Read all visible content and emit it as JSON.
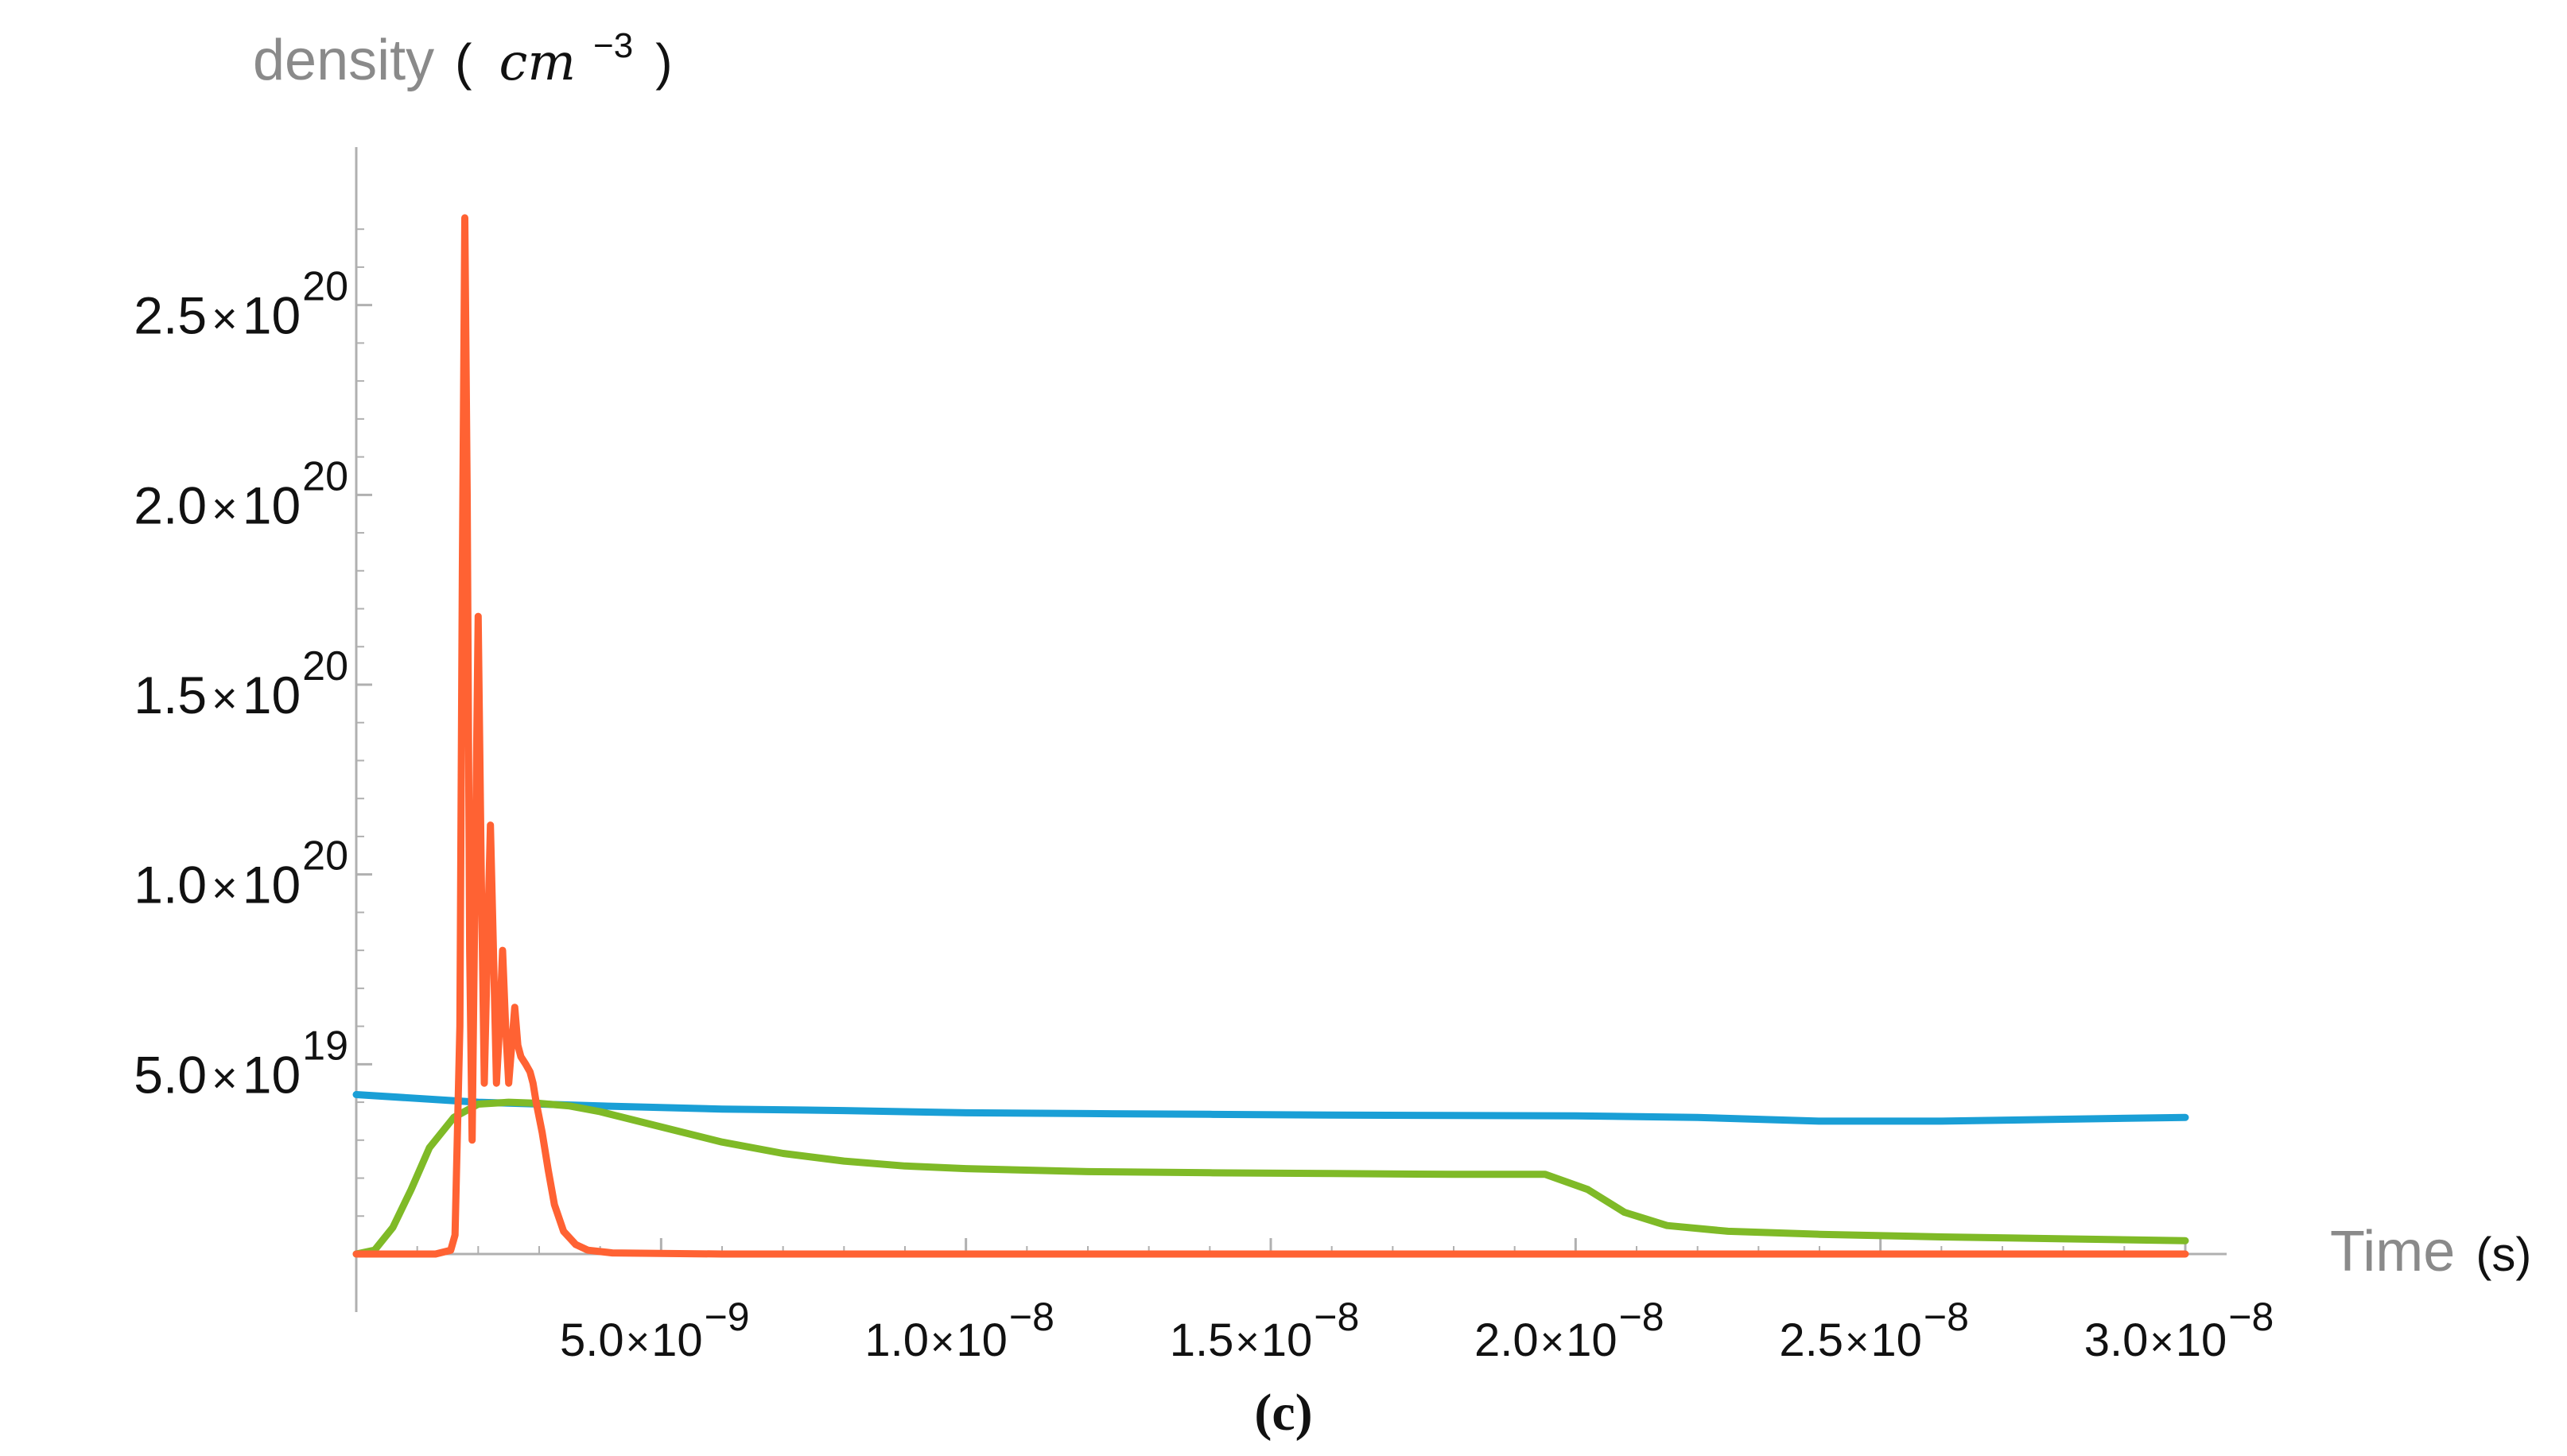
{
  "chart_data": {
    "type": "line",
    "caption": "(c)",
    "ylabel": {
      "word": "density",
      "open": "(",
      "unit_base": "cm",
      "unit_exp": "−3",
      "close": ")"
    },
    "xlabel": {
      "word": "Time",
      "unit": "(s)"
    },
    "xlim": [
      0,
      3e-08
    ],
    "ylim": [
      0,
      2.78e+20
    ],
    "x_ticks": [
      {
        "value": 5e-09,
        "mantissa": "5.0",
        "times": "×",
        "base": "10",
        "exp": "−9"
      },
      {
        "value": 1e-08,
        "mantissa": "1.0",
        "times": "×",
        "base": "10",
        "exp": "−8"
      },
      {
        "value": 1.5e-08,
        "mantissa": "1.5",
        "times": "×",
        "base": "10",
        "exp": "−8"
      },
      {
        "value": 2e-08,
        "mantissa": "2.0",
        "times": "×",
        "base": "10",
        "exp": "−8"
      },
      {
        "value": 2.5e-08,
        "mantissa": "2.5",
        "times": "×",
        "base": "10",
        "exp": "−8"
      },
      {
        "value": 3e-08,
        "mantissa": "3.0",
        "times": "×",
        "base": "10",
        "exp": "−8"
      }
    ],
    "y_ticks": [
      {
        "value": 5e+19,
        "mantissa": "5.0",
        "times": "×",
        "base": "10",
        "exp": "19"
      },
      {
        "value": 1e+20,
        "mantissa": "1.0",
        "times": "×",
        "base": "10",
        "exp": "20"
      },
      {
        "value": 1.5e+20,
        "mantissa": "1.5",
        "times": "×",
        "base": "10",
        "exp": "20"
      },
      {
        "value": 2e+20,
        "mantissa": "2.0",
        "times": "×",
        "base": "10",
        "exp": "20"
      },
      {
        "value": 2.5e+20,
        "mantissa": "2.5",
        "times": "×",
        "base": "10",
        "exp": "20"
      }
    ],
    "grid": false,
    "legend": "none",
    "series": [
      {
        "color": "#1a9fd6",
        "x": [
          0,
          2e-09,
          4e-09,
          6e-09,
          8e-09,
          1e-08,
          1.2e-08,
          1.4e-08,
          1.6e-08,
          1.8e-08,
          2e-08,
          2.2e-08,
          2.4e-08,
          2.6e-08,
          2.8e-08,
          3e-08
        ],
        "y": [
          4.2e+19,
          4e+19,
          3.9e+19,
          3.82e+19,
          3.78e+19,
          3.72e+19,
          3.7e+19,
          3.68e+19,
          3.66e+19,
          3.65e+19,
          3.64e+19,
          3.6e+19,
          3.5e+19,
          3.5e+19,
          3.55e+19,
          3.6e+19
        ]
      },
      {
        "color": "#7fba27",
        "x": [
          0,
          3e-10,
          6e-10,
          9e-10,
          1.2e-09,
          1.6e-09,
          2e-09,
          2.5e-09,
          3e-09,
          3.5e-09,
          4e-09,
          5e-09,
          6e-09,
          7e-09,
          8e-09,
          9e-09,
          1e-08,
          1.2e-08,
          1.4e-08,
          1.6e-08,
          1.8e-08,
          1.95e-08,
          2.02e-08,
          2.08e-08,
          2.15e-08,
          2.25e-08,
          2.4e-08,
          2.6e-08,
          2.8e-08,
          3e-08
        ],
        "y": [
          0,
          1e+18,
          7e+18,
          1.7e+19,
          2.8e+19,
          3.6e+19,
          3.95e+19,
          4e+19,
          3.97e+19,
          3.9e+19,
          3.75e+19,
          3.35e+19,
          2.95e+19,
          2.65e+19,
          2.45e+19,
          2.32e+19,
          2.25e+19,
          2.17e+19,
          2.14e+19,
          2.12e+19,
          2.1e+19,
          2.1e+19,
          1.7e+19,
          1.1e+19,
          7.5e+18,
          6e+18,
          5.2e+18,
          4.5e+18,
          4e+18,
          3.5e+18
        ]
      },
      {
        "color": "#ff6233",
        "x": [
          0,
          1.3e-09,
          1.55e-09,
          1.62e-09,
          1.7e-09,
          1.74e-09,
          1.78e-09,
          1.82e-09,
          1.86e-09,
          1.9e-09,
          1.95e-09,
          2e-09,
          2.05e-09,
          2.1e-09,
          2.15e-09,
          2.2e-09,
          2.25e-09,
          2.3e-09,
          2.35e-09,
          2.4e-09,
          2.45e-09,
          2.5e-09,
          2.55e-09,
          2.6e-09,
          2.65e-09,
          2.7e-09,
          2.78e-09,
          2.85e-09,
          2.9e-09,
          2.95e-09,
          3.05e-09,
          3.15e-09,
          3.25e-09,
          3.4e-09,
          3.6e-09,
          3.8e-09,
          4.2e-09,
          6e-09,
          1e-08,
          2e-08,
          3e-08
        ],
        "y": [
          0,
          0,
          1e+18,
          5e+18,
          6e+19,
          1.8e+20,
          2.73e+20,
          2e+20,
          8e+19,
          3e+19,
          1e+20,
          1.68e+20,
          1e+20,
          4.5e+19,
          8e+19,
          1.13e+20,
          8e+19,
          4.5e+19,
          6e+19,
          8e+19,
          6e+19,
          4.5e+19,
          5.5e+19,
          6.5e+19,
          5.5e+19,
          5.2e+19,
          5e+19,
          4.8e+19,
          4.5e+19,
          4e+19,
          3.2e+19,
          2.2e+19,
          1.3e+19,
          6e+18,
          2.5e+18,
          1e+18,
          3e+17,
          0,
          0,
          0,
          0
        ]
      }
    ]
  }
}
